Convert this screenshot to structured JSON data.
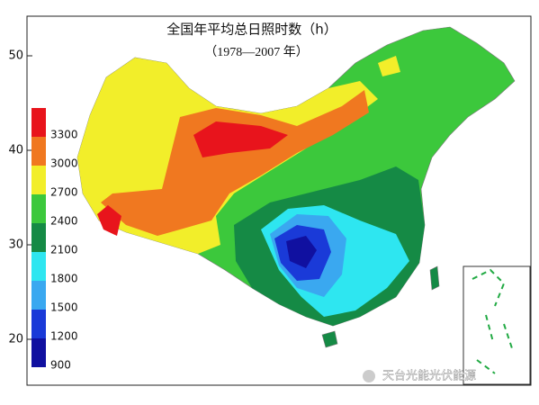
{
  "title": "全国年平均总日照时数（h）",
  "subtitle": "（1978—2007 年）",
  "latitude_ticks": [
    50,
    40,
    30,
    20
  ],
  "legend": [
    {
      "label": "3300",
      "color": "#e8141c"
    },
    {
      "label": "3000",
      "color": "#f07820"
    },
    {
      "label": "2700",
      "color": "#f2ee2a"
    },
    {
      "label": "2400",
      "color": "#3cc83c"
    },
    {
      "label": "2100",
      "color": "#158a45"
    },
    {
      "label": "1800",
      "color": "#2ee6f0"
    },
    {
      "label": "1500",
      "color": "#3aa8f0"
    },
    {
      "label": "1200",
      "color": "#1a3ad8"
    },
    {
      "label": "900",
      "color": "#1010a0"
    }
  ],
  "watermark": "天台光能光伏能源"
}
